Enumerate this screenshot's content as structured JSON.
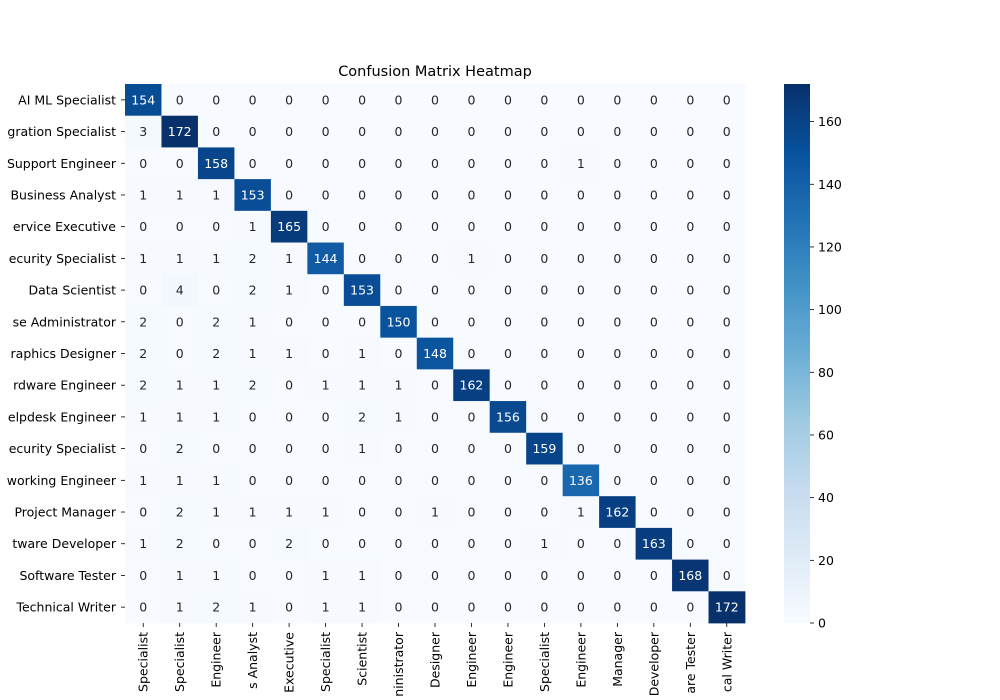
{
  "chart_data": {
    "type": "heatmap",
    "title": "Confusion Matrix Heatmap",
    "xlabel": "",
    "ylabel": "",
    "y_tick_labels": [
      "AI ML Specialist",
      "gration Specialist",
      "Support Engineer",
      "Business Analyst",
      "ervice Executive",
      "ecurity Specialist",
      "Data Scientist",
      "se Administrator",
      "raphics Designer",
      "rdware Engineer",
      "elpdesk Engineer",
      "ecurity Specialist",
      "working Engineer",
      "Project Manager",
      "tware Developer",
      "Software Tester",
      "Technical Writer"
    ],
    "x_tick_labels": [
      "Specialist",
      "Specialist",
      "Engineer",
      "s Analyst",
      "Executive",
      "Specialist",
      "Scientist",
      "ninistrator",
      "Designer",
      "Engineer",
      "Engineer",
      "Specialist",
      "Engineer",
      "Manager",
      "Developer",
      "are Tester",
      "cal Writer"
    ],
    "matrix": [
      [
        154,
        0,
        0,
        0,
        0,
        0,
        0,
        0,
        0,
        0,
        0,
        0,
        0,
        0,
        0,
        0,
        0
      ],
      [
        3,
        172,
        0,
        0,
        0,
        0,
        0,
        0,
        0,
        0,
        0,
        0,
        0,
        0,
        0,
        0,
        0
      ],
      [
        0,
        0,
        158,
        0,
        0,
        0,
        0,
        0,
        0,
        0,
        0,
        0,
        1,
        0,
        0,
        0,
        0
      ],
      [
        1,
        1,
        1,
        153,
        0,
        0,
        0,
        0,
        0,
        0,
        0,
        0,
        0,
        0,
        0,
        0,
        0
      ],
      [
        0,
        0,
        0,
        1,
        165,
        0,
        0,
        0,
        0,
        0,
        0,
        0,
        0,
        0,
        0,
        0,
        0
      ],
      [
        1,
        1,
        1,
        2,
        1,
        144,
        0,
        0,
        0,
        1,
        0,
        0,
        0,
        0,
        0,
        0,
        0
      ],
      [
        0,
        4,
        0,
        2,
        1,
        0,
        153,
        0,
        0,
        0,
        0,
        0,
        0,
        0,
        0,
        0,
        0
      ],
      [
        2,
        0,
        2,
        1,
        0,
        0,
        0,
        150,
        0,
        0,
        0,
        0,
        0,
        0,
        0,
        0,
        0
      ],
      [
        2,
        0,
        2,
        1,
        1,
        0,
        1,
        0,
        148,
        0,
        0,
        0,
        0,
        0,
        0,
        0,
        0
      ],
      [
        2,
        1,
        1,
        2,
        0,
        1,
        1,
        1,
        0,
        162,
        0,
        0,
        0,
        0,
        0,
        0,
        0
      ],
      [
        1,
        1,
        1,
        0,
        0,
        0,
        2,
        1,
        0,
        0,
        156,
        0,
        0,
        0,
        0,
        0,
        0
      ],
      [
        0,
        2,
        0,
        0,
        0,
        0,
        1,
        0,
        0,
        0,
        0,
        159,
        0,
        0,
        0,
        0,
        0
      ],
      [
        1,
        1,
        1,
        0,
        0,
        0,
        0,
        0,
        0,
        0,
        0,
        0,
        136,
        0,
        0,
        0,
        0
      ],
      [
        0,
        2,
        1,
        1,
        1,
        1,
        0,
        0,
        1,
        0,
        0,
        0,
        1,
        162,
        0,
        0,
        0
      ],
      [
        1,
        2,
        0,
        0,
        2,
        0,
        0,
        0,
        0,
        0,
        0,
        1,
        0,
        0,
        163,
        0,
        0
      ],
      [
        0,
        1,
        1,
        0,
        0,
        1,
        1,
        0,
        0,
        0,
        0,
        0,
        0,
        0,
        0,
        168,
        0
      ],
      [
        0,
        1,
        2,
        1,
        0,
        1,
        1,
        0,
        0,
        0,
        0,
        0,
        0,
        0,
        0,
        0,
        172
      ]
    ],
    "colorbar": {
      "colormap": "Blues",
      "vmin": 0,
      "vmax": 172,
      "ticks": [
        0,
        20,
        40,
        60,
        80,
        100,
        120,
        140,
        160
      ]
    },
    "annotate": true
  }
}
